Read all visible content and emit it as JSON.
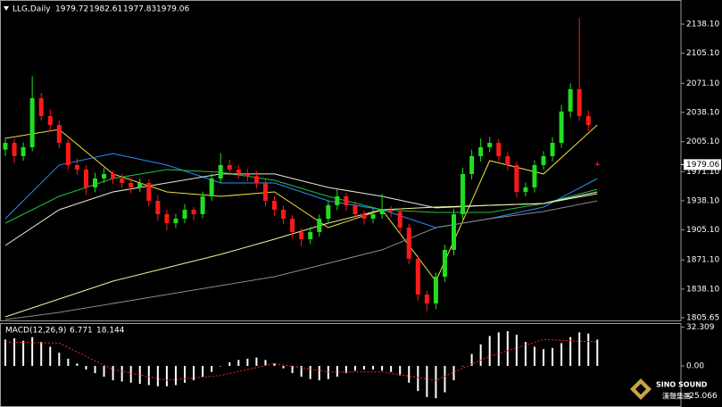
{
  "chart_data": {
    "type": "candlestick",
    "title": "LLG,Daily",
    "open": [
      1996.0,
      2003.7,
      1988.6,
      1998.7,
      2054.2,
      2034.0,
      2023.9,
      2003.7,
      1978.5,
      1973.4,
      1953.2,
      1963.3,
      1968.4,
      1963.3,
      1958.2,
      1953.2,
      1958.2,
      1938.0,
      1922.9,
      1912.8,
      1917.8,
      1927.9,
      1922.9,
      1943.1,
      1963.3,
      1978.5,
      1973.4,
      1968.4,
      1966.0,
      1958.2,
      1938.0,
      1927.9,
      1917.8,
      1902.7,
      1894.6,
      1902.7,
      1917.8,
      1933.0,
      1943.1,
      1933.0,
      1922.9,
      1917.8,
      1922.9,
      1927.9,
      1925.5,
      1907.7,
      1872.4,
      1831.9,
      1821.8,
      1852.1,
      1882.5,
      1922.9,
      1968.4,
      1988.6,
      1998.7,
      2003.7,
      1988.6,
      1978.5,
      1948.1,
      1953.2,
      1978.5,
      1988.6,
      2003.7,
      2039.1,
      2064.4,
      2034.0,
      1979.72
    ],
    "high": [
      2009.5,
      2008.1,
      2004.2,
      2079.0,
      2060.3,
      2041.5,
      2029.0,
      2008.2,
      1986.0,
      1978.1,
      1969.9,
      1975.0,
      1972.6,
      1968.8,
      1964.0,
      1963.5,
      1962.1,
      1944.6,
      1928.0,
      1923.4,
      1934.2,
      1931.0,
      1948.5,
      1969.0,
      1992.0,
      1984.7,
      1978.9,
      1974.2,
      1971.5,
      1962.0,
      1943.3,
      1932.5,
      1922.0,
      1907.6,
      1908.0,
      1922.5,
      1938.4,
      1951.0,
      1947.2,
      1937.5,
      1927.3,
      1929.0,
      1946.0,
      1932.1,
      1929.8,
      1912.0,
      1876.5,
      1836.2,
      1857.0,
      1888.3,
      1929.1,
      1975.5,
      1996.0,
      2008.4,
      2010.5,
      2007.9,
      1993.0,
      1982.4,
      1958.7,
      1984.0,
      1994.3,
      2010.0,
      2046.5,
      2071.0,
      2145.0,
      2040.2,
      1982.61
    ],
    "low": [
      1988.4,
      1981.0,
      1983.5,
      1994.1,
      2028.7,
      2017.0,
      1997.5,
      1972.9,
      1967.1,
      1945.0,
      1947.8,
      1958.5,
      1957.0,
      1952.4,
      1946.6,
      1948.0,
      1931.5,
      1915.4,
      1904.9,
      1907.1,
      1912.6,
      1916.0,
      1918.3,
      1938.0,
      1958.2,
      1966.8,
      1962.9,
      1960.1,
      1952.0,
      1931.6,
      1921.0,
      1911.4,
      1896.1,
      1886.9,
      1889.0,
      1897.3,
      1912.5,
      1927.4,
      1926.8,
      1917.0,
      1911.2,
      1912.5,
      1917.6,
      1919.9,
      1901.4,
      1866.0,
      1825.0,
      1813.0,
      1815.5,
      1846.0,
      1876.4,
      1917.0,
      1962.2,
      1982.5,
      1993.1,
      1983.0,
      1972.4,
      1941.8,
      1943.0,
      1947.5,
      1973.1,
      1982.8,
      1998.0,
      2032.5,
      2028.4,
      2017.0,
      1977.83
    ],
    "close": [
      2003.7,
      1988.6,
      1998.7,
      2054.2,
      2034.0,
      2023.9,
      2003.7,
      1978.5,
      1973.4,
      1953.2,
      1963.3,
      1968.4,
      1963.3,
      1958.2,
      1953.2,
      1958.2,
      1938.0,
      1922.9,
      1912.8,
      1917.8,
      1927.9,
      1922.9,
      1943.1,
      1963.3,
      1978.5,
      1973.4,
      1968.4,
      1966.0,
      1958.2,
      1938.0,
      1927.9,
      1917.8,
      1902.7,
      1894.6,
      1902.7,
      1917.8,
      1933.0,
      1943.1,
      1933.0,
      1922.9,
      1917.8,
      1922.9,
      1927.9,
      1925.5,
      1907.7,
      1872.4,
      1831.9,
      1821.8,
      1852.1,
      1882.5,
      1922.9,
      1968.4,
      1988.6,
      1998.7,
      2003.7,
      1988.6,
      1978.5,
      1948.1,
      1953.2,
      1978.5,
      1988.6,
      2003.7,
      2039.1,
      2064.4,
      2034.0,
      2023.9,
      1979.06
    ],
    "up_color": "#22dd22",
    "down_color": "#ff1a1a",
    "ylim": [
      1801.6,
      2165.4
    ],
    "yticks": [
      {
        "value": 2138.1,
        "label": "2138.10"
      },
      {
        "value": 2105.1,
        "label": "2105.10"
      },
      {
        "value": 2071.1,
        "label": "2071.10"
      },
      {
        "value": 2038.1,
        "label": "2038.10"
      },
      {
        "value": 2005.1,
        "label": "2005.10"
      },
      {
        "value": 1971.1,
        "label": "1971.10"
      },
      {
        "value": 1938.1,
        "label": "1938.10"
      },
      {
        "value": 1905.1,
        "label": "1905.10"
      },
      {
        "value": 1871.1,
        "label": "1871.10"
      },
      {
        "value": 1838.1,
        "label": "1838.10"
      },
      1805.65
    ],
    "ma_x": [
      0,
      6,
      12,
      18,
      24,
      30,
      36,
      42,
      48,
      54,
      60,
      66
    ],
    "series": [
      {
        "color": "#f0e040",
        "values": [
          2008.8,
          2018.9,
          1968.4,
          1948.1,
          1943.1,
          1948.1,
          1907.7,
          1927.9,
          1847.1,
          1983.5,
          1968.4,
          2023.9
        ]
      },
      {
        "color": "#2a8cff",
        "values": [
          1917.8,
          1978.5,
          1991.6,
          1978.5,
          1958.2,
          1958.2,
          1938.0,
          1927.9,
          1907.7,
          1917.8,
          1931.0,
          1963.3
        ]
      },
      {
        "color": "#22c040",
        "values": [
          1912.8,
          1943.1,
          1963.3,
          1973.4,
          1970.4,
          1961.3,
          1943.1,
          1927.9,
          1924.9,
          1924.9,
          1935.0,
          1951.2
        ]
      },
      {
        "color": "#e8e8d8",
        "values": [
          1887.5,
          1927.9,
          1948.1,
          1958.2,
          1968.4,
          1968.4,
          1953.2,
          1943.1,
          1930.0,
          1933.0,
          1935.0,
          1948.1
        ]
      },
      {
        "color": "#f5f0a0",
        "values": [
          1806.7,
          1826.9,
          1847.1,
          1862.2,
          1877.4,
          1894.6,
          1912.8,
          1927.9,
          1931.0,
          1933.0,
          1935.0,
          1946.1
        ]
      },
      {
        "color": "#8a8a8a",
        "values": [
          1803.6,
          1811.7,
          1821.8,
          1831.9,
          1842.0,
          1852.1,
          1867.3,
          1882.5,
          1907.7,
          1917.8,
          1925.9,
          1938.0
        ]
      }
    ],
    "macd": {
      "title": "MACD(12,26,9)",
      "main": 6.771,
      "signal": 18.144,
      "color": "#ffffff",
      "signal_color": "#ff2020",
      "histogram": [
        22,
        23,
        21,
        24,
        20,
        16,
        11,
        6,
        2,
        -3,
        -6,
        -9,
        -12,
        -13,
        -14,
        -15,
        -16,
        -17,
        -17,
        -16,
        -14,
        -12,
        -9,
        -5,
        0,
        3,
        5,
        6,
        7,
        5,
        2,
        -2,
        -6,
        -9,
        -11,
        -12,
        -11,
        -9,
        -6,
        -4,
        -3,
        -3,
        -4,
        -5,
        -8,
        -14,
        -21,
        -26,
        -27,
        -22,
        -12,
        0,
        10,
        18,
        25,
        28,
        29,
        26,
        20,
        16,
        14,
        15,
        19,
        24,
        28,
        27,
        22
      ],
      "signal_line": [
        20,
        19,
        -3,
        -12,
        -8,
        2,
        -5,
        -5,
        -12,
        8,
        22,
        20
      ],
      "ylim": [
        -34.3,
        35.0
      ],
      "yticks": [
        32.309,
        {
          "value": 0,
          "label": "0.00"
        },
        -25.066
      ]
    },
    "brand": "SINO SOUND",
    "brand_cn": "漢聲集團"
  }
}
